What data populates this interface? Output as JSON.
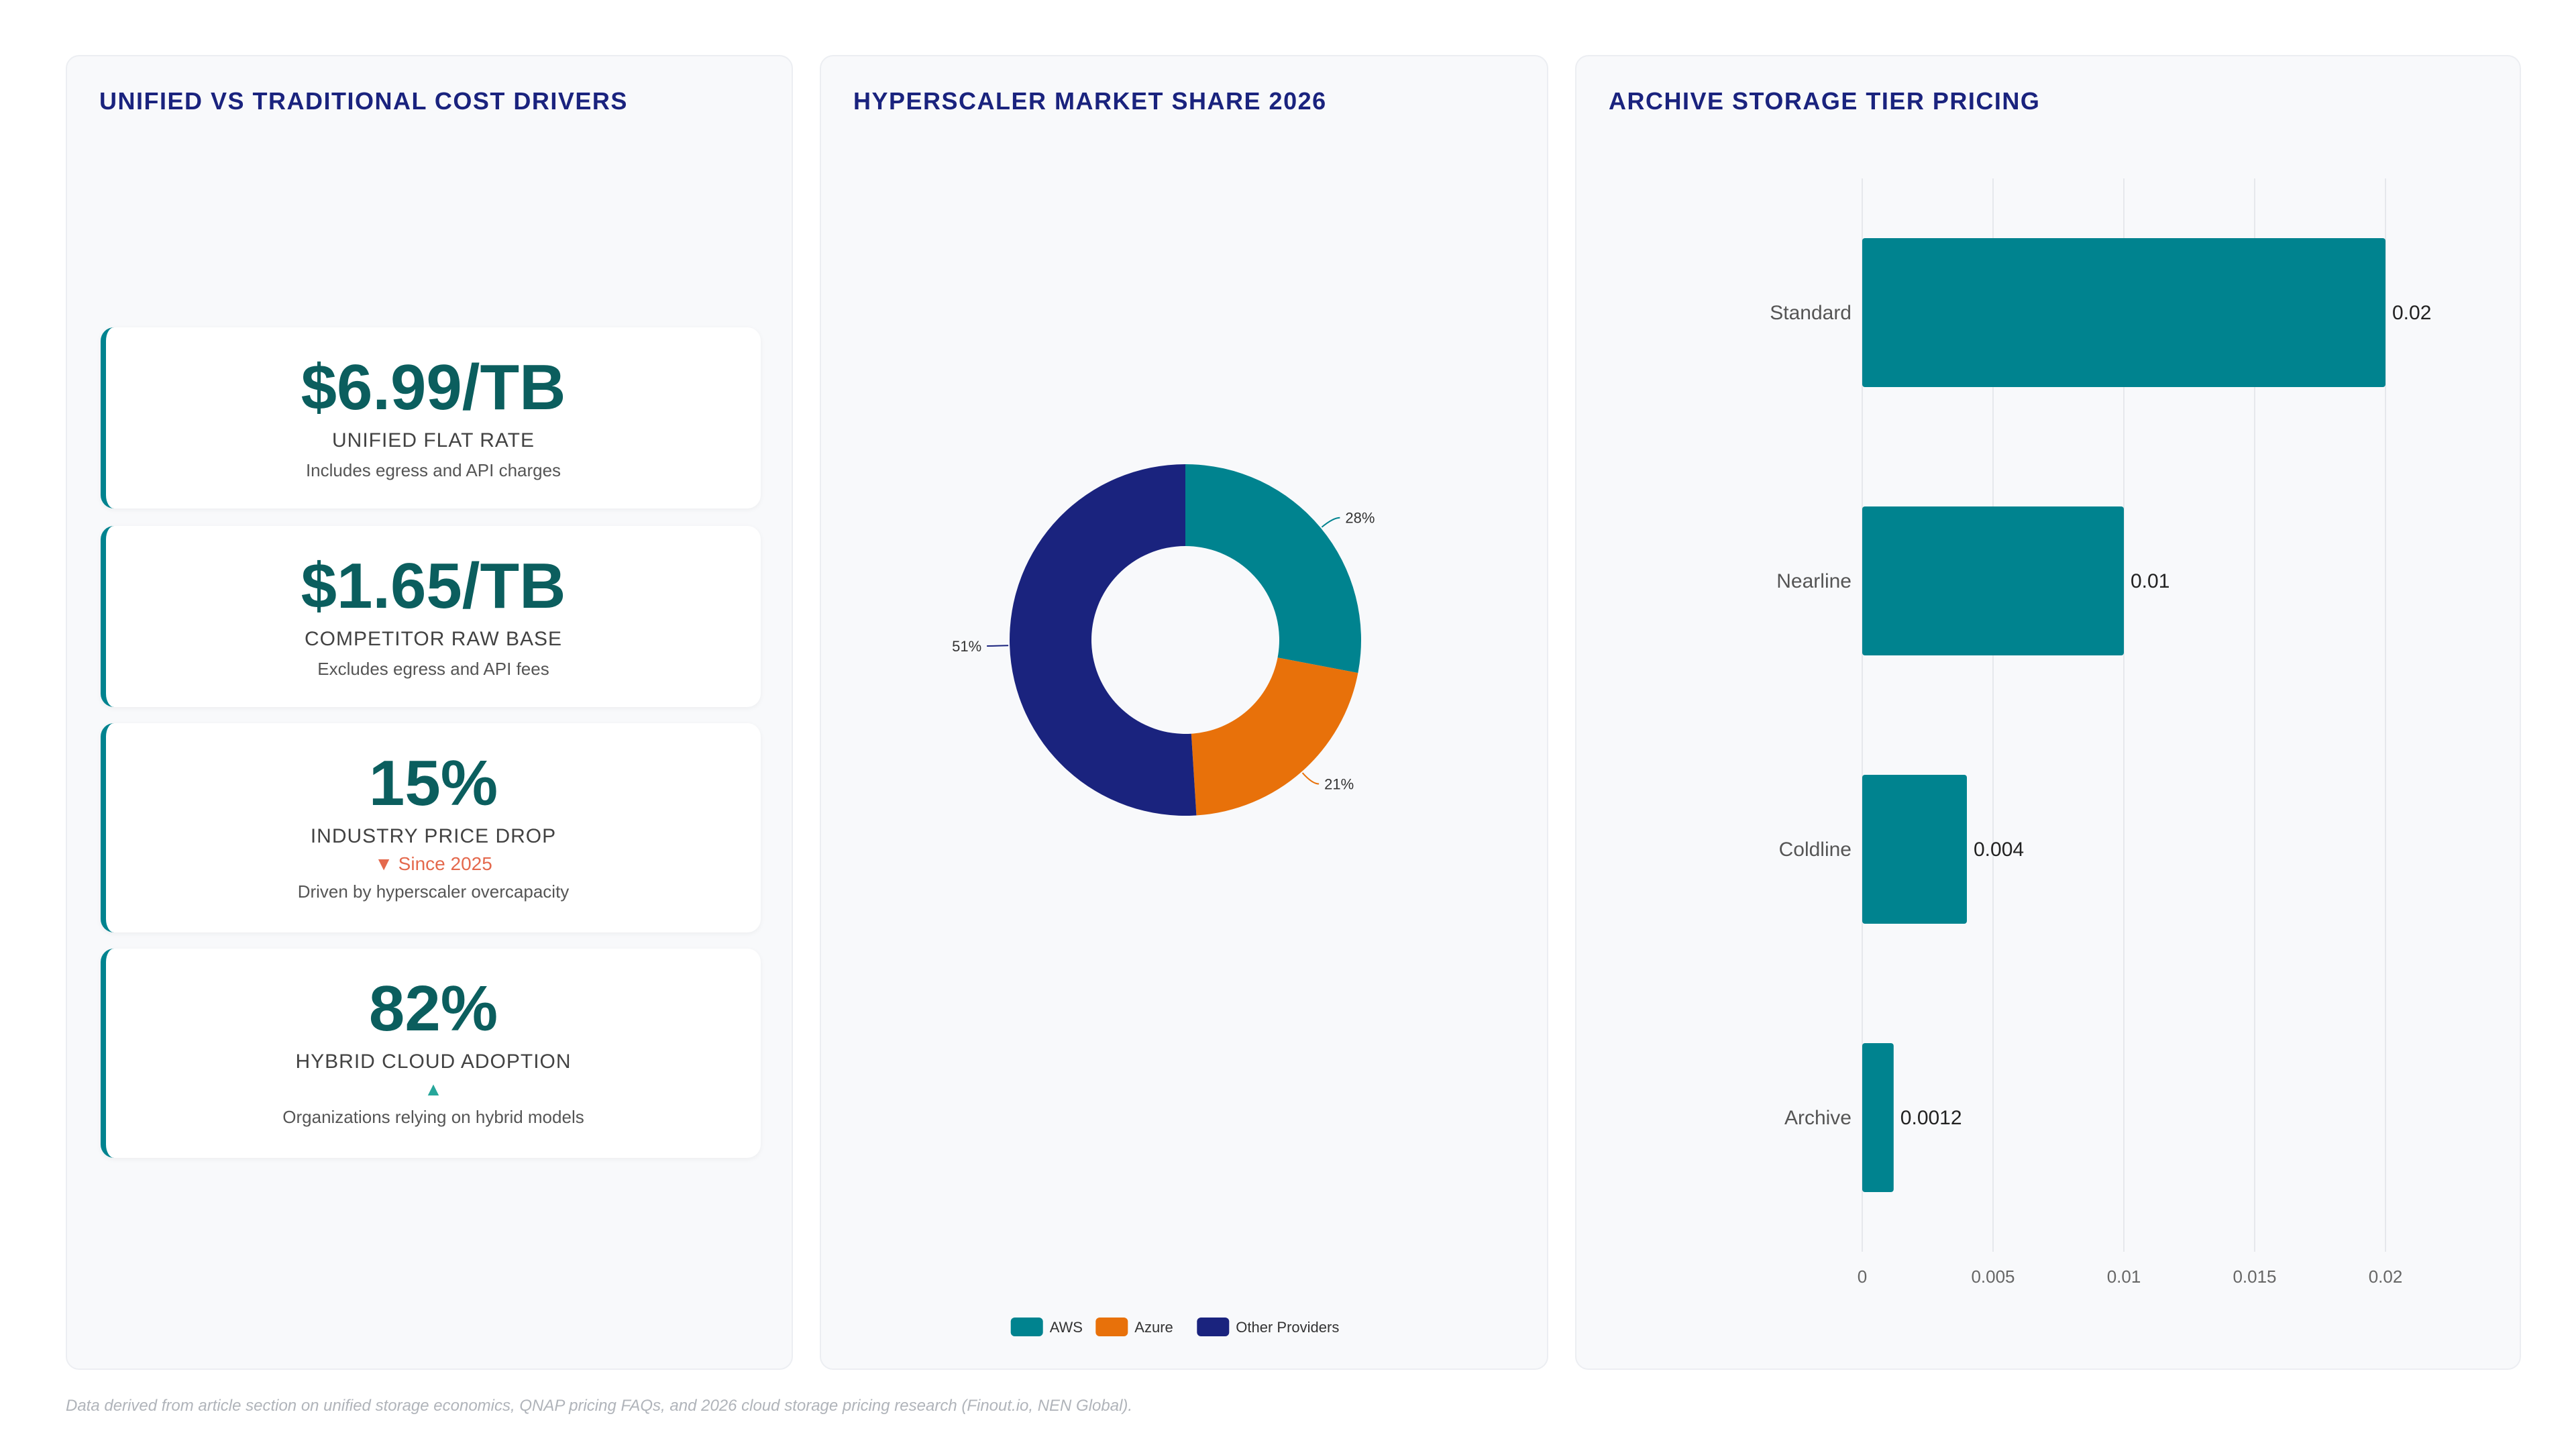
{
  "panels": {
    "kpi": {
      "title": "UNIFIED VS TRADITIONAL COST DRIVERS"
    },
    "donut": {
      "title": "HYPERSCALER MARKET SHARE 2026"
    },
    "bars": {
      "title": "ARCHIVE STORAGE TIER PRICING"
    }
  },
  "kpis": [
    {
      "value": "$6.99/TB",
      "label": "UNIFIED FLAT RATE",
      "trend": "",
      "trend_color": "",
      "desc": "Includes egress and API charges"
    },
    {
      "value": "$1.65/TB",
      "label": "COMPETITOR RAW BASE",
      "trend": "",
      "trend_color": "",
      "desc": "Excludes egress and API fees"
    },
    {
      "value": "15%",
      "label": "INDUSTRY PRICE DROP",
      "trend": "▼ Since 2025",
      "trend_color": "#e4694d",
      "desc": "Driven by hyperscaler overcapacity"
    },
    {
      "value": "82%",
      "label": "HYBRID CLOUD ADOPTION",
      "trend": "▲",
      "trend_color": "#26a69a",
      "desc": "Organizations relying on hybrid models"
    }
  ],
  "chart_data": [
    {
      "type": "pie",
      "title": "HYPERSCALER MARKET SHARE 2026",
      "donut": true,
      "slices": [
        {
          "name": "AWS",
          "value": 28,
          "label": "28%",
          "color": "#00838f"
        },
        {
          "name": "Azure",
          "value": 21,
          "label": "21%",
          "color": "#e8710a"
        },
        {
          "name": "Other Providers",
          "value": 51,
          "label": "51%",
          "color": "#1a237e"
        }
      ],
      "legend": "bottom"
    },
    {
      "type": "bar",
      "orientation": "horizontal",
      "title": "ARCHIVE STORAGE TIER PRICING",
      "categories": [
        "Standard",
        "Nearline",
        "Coldline",
        "Archive"
      ],
      "values": [
        0.02,
        0.01,
        0.004,
        0.0012
      ],
      "value_labels": [
        "0.02",
        "0.01",
        "0.004",
        "0.0012"
      ],
      "xlim": [
        0,
        0.02
      ],
      "xticks": [
        0,
        0.005,
        0.01,
        0.015,
        0.02
      ],
      "xtick_labels": [
        "0",
        "0.005",
        "0.01",
        "0.015",
        "0.02"
      ],
      "bar_color": "#00838f",
      "grid": true
    }
  ],
  "footer": "Data derived from article section on unified storage economics, QNAP pricing FAQs, and 2026 cloud storage pricing research (Finout.io, NEN Global)."
}
